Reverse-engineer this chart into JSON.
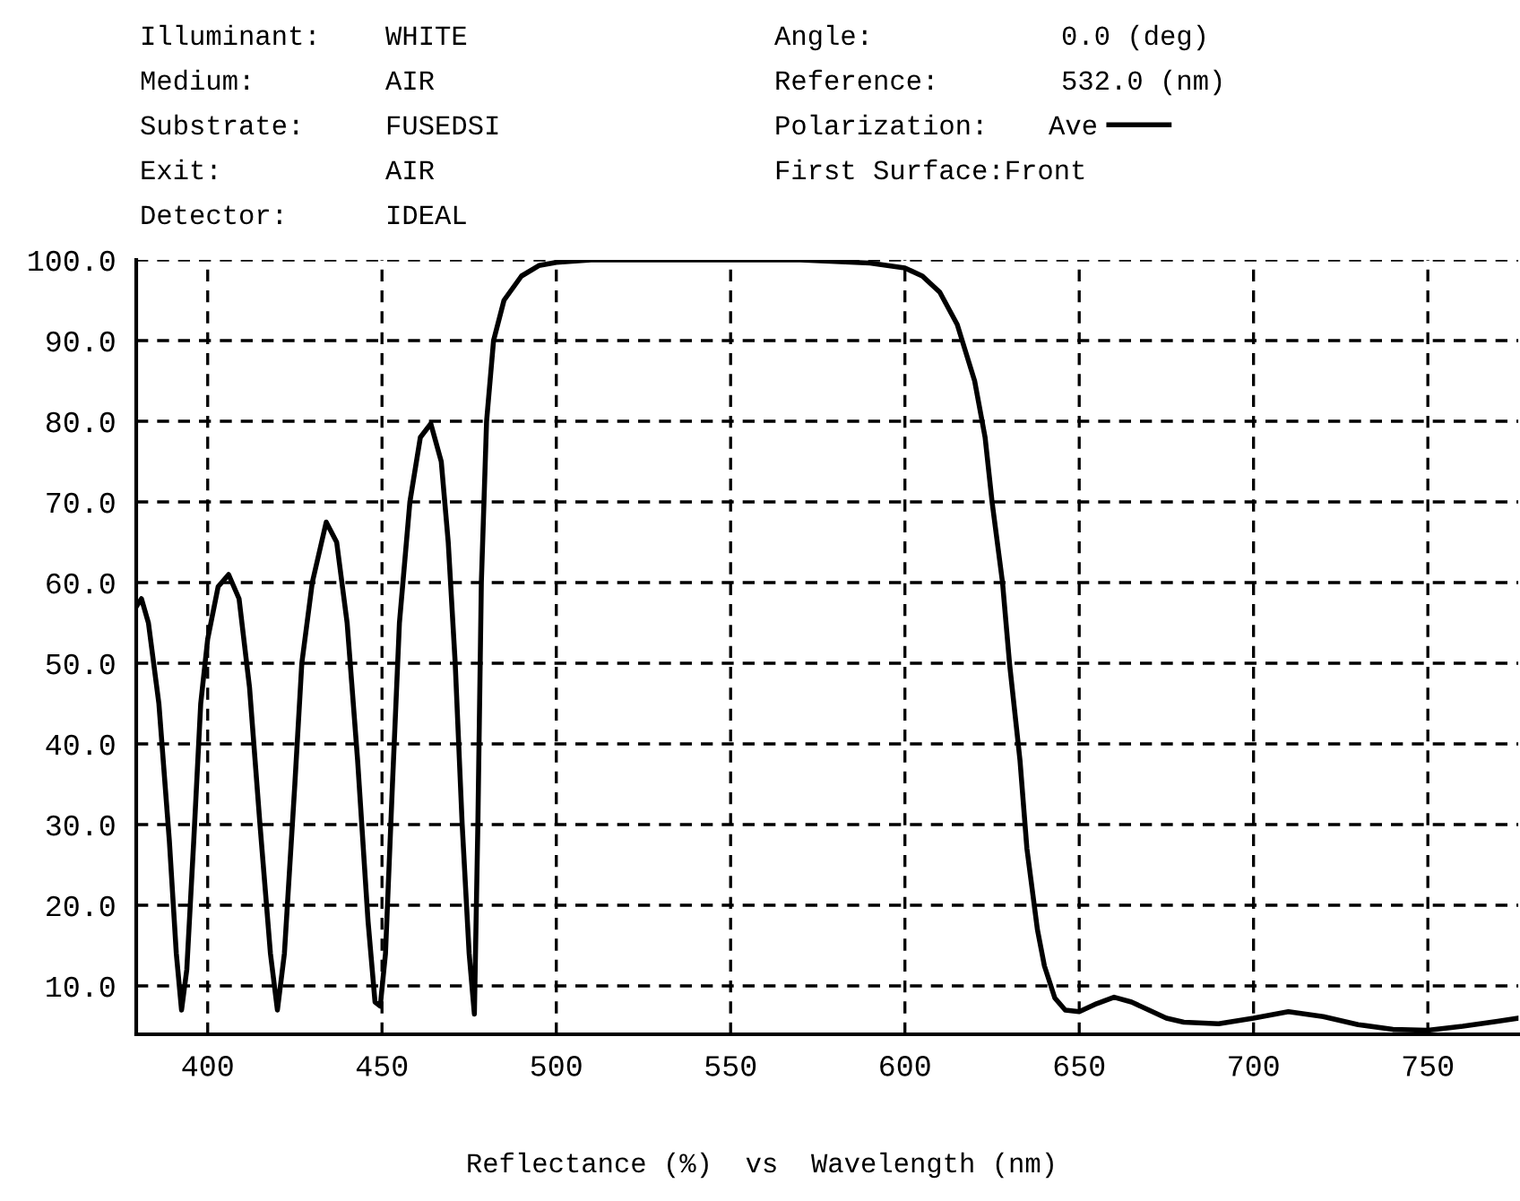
{
  "chart_data": {
    "type": "line",
    "xlabel": "Reflectance (%)  vs  Wavelength (nm)",
    "annotations": [
      "Illuminant:",
      "Medium:",
      "Substrate:",
      "Exit:",
      "Detector:",
      "WHITE",
      "AIR",
      "FUSEDSI",
      "AIR",
      "IDEAL",
      "Angle:",
      "Reference:",
      "Polarization:",
      "First Surface:Front",
      "0.0 (deg)",
      "532.0 (nm)"
    ],
    "xlim": [
      379.5,
      776
    ],
    "ylim": [
      4,
      100
    ],
    "xticks": [
      400,
      450,
      500,
      550,
      600,
      650,
      700,
      750
    ],
    "yticks": [
      {
        "value": 10,
        "label": "10.0"
      },
      {
        "value": 20,
        "label": "20.0"
      },
      {
        "value": 30,
        "label": "30.0"
      },
      {
        "value": 40,
        "label": "40.0"
      },
      {
        "value": 50,
        "label": "50.0"
      },
      {
        "value": 60,
        "label": "60.0"
      },
      {
        "value": 70,
        "label": "70.0"
      },
      {
        "value": 80,
        "label": "80.0"
      },
      {
        "value": 90,
        "label": "90.0"
      },
      {
        "value": 100,
        "label": "100.0"
      }
    ],
    "grid": true,
    "legend": "top",
    "line_style": "solid",
    "series": [
      {
        "name": "Ave",
        "color": "#000000",
        "x": [
          379.5,
          381,
          383,
          386,
          389,
          391,
          392.5,
          394,
          396,
          398,
          400,
          403,
          406,
          409,
          412,
          415,
          418,
          420,
          422,
          425,
          427,
          430,
          434,
          437,
          440,
          443,
          446,
          448,
          449.5,
          451,
          453,
          455,
          458,
          461,
          464,
          467,
          469,
          471,
          473,
          475,
          476.5,
          477.5,
          478.5,
          480,
          482,
          485,
          490,
          495,
          500,
          510,
          540,
          570,
          590,
          600,
          605,
          610,
          615,
          620,
          623,
          625,
          628,
          630,
          633,
          635,
          638,
          640,
          643,
          646,
          650,
          655,
          660,
          665,
          670,
          675,
          680,
          690,
          700,
          710,
          720,
          730,
          740,
          750,
          760,
          770,
          776
        ],
        "values": [
          57,
          58,
          55,
          45,
          28,
          14,
          7,
          12,
          28,
          45,
          53,
          59.5,
          61,
          58,
          47,
          30,
          14,
          7,
          14,
          35,
          50,
          60,
          67.5,
          65,
          55,
          38,
          18,
          8,
          7.5,
          14,
          35,
          55,
          70,
          78,
          79.7,
          75,
          65,
          50,
          30,
          14,
          6.5,
          30,
          60,
          80,
          90,
          95,
          98,
          99.3,
          99.7,
          100,
          100,
          100,
          99.6,
          99,
          98,
          96,
          92,
          85,
          78,
          70,
          60,
          50,
          38,
          27,
          17,
          12.5,
          8.5,
          7,
          6.8,
          7.8,
          8.6,
          8,
          7,
          6,
          5.5,
          5.3,
          6,
          6.8,
          6.2,
          5.2,
          4.6,
          4.5,
          5,
          5.6,
          6
        ]
      }
    ]
  }
}
